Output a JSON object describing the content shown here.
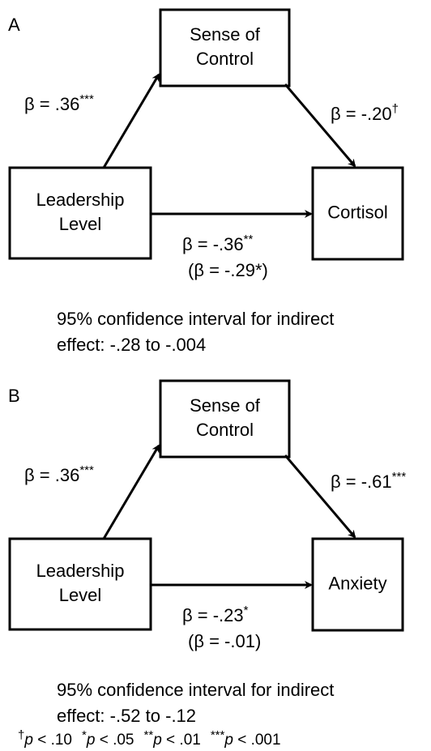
{
  "panels": [
    {
      "label": "A",
      "nodes": [
        [
          "Sense of",
          "Control"
        ],
        [
          "Leadership",
          "Level"
        ],
        [
          "Cortisol"
        ]
      ],
      "paths": {
        "a": {
          "text": "β = .36",
          "sup": "***"
        },
        "b": {
          "text": "β = -.20",
          "sup": "†"
        },
        "c": {
          "text": "β = -.36",
          "sup": "**"
        },
        "c_prime": "(β = -.29*)"
      },
      "ci": [
        "95% confidence interval for indirect",
        "effect: -.28 to -.004"
      ]
    },
    {
      "label": "B",
      "nodes": [
        [
          "Sense of",
          "Control"
        ],
        [
          "Leadership",
          "Level"
        ],
        [
          "Anxiety"
        ]
      ],
      "paths": {
        "a": {
          "text": "β = .36",
          "sup": "***"
        },
        "b": {
          "text": "β = -.61",
          "sup": "***"
        },
        "c": {
          "text": "β = -.23",
          "sup": "*"
        },
        "c_prime": "(β = -.01)"
      },
      "ci": [
        "95% confidence interval for indirect",
        "effect: -.52 to -.12"
      ]
    }
  ],
  "footnote": [
    {
      "mark": "†",
      "p": "p",
      "rest": " < .10"
    },
    {
      "mark": "*",
      "p": "p",
      "rest": " < .05"
    },
    {
      "mark": "**",
      "p": "p",
      "rest": " < .01"
    },
    {
      "mark": "***",
      "p": "p",
      "rest": " < .001"
    }
  ]
}
